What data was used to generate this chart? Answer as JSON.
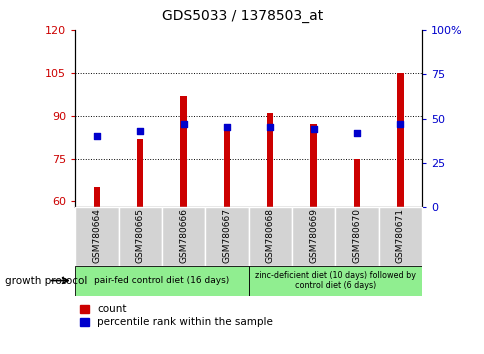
{
  "title": "GDS5033 / 1378503_at",
  "samples": [
    "GSM780664",
    "GSM780665",
    "GSM780666",
    "GSM780667",
    "GSM780668",
    "GSM780669",
    "GSM780670",
    "GSM780671"
  ],
  "counts": [
    65,
    82,
    97,
    87,
    91,
    87,
    75,
    105
  ],
  "percentile_ranks": [
    40,
    43,
    47,
    45,
    45,
    44,
    42,
    47
  ],
  "ylim_left": [
    58,
    120
  ],
  "ylim_right": [
    0,
    100
  ],
  "yticks_left": [
    60,
    75,
    90,
    105,
    120
  ],
  "yticks_right": [
    0,
    25,
    50,
    75,
    100
  ],
  "ytick_labels_left": [
    "60",
    "75",
    "90",
    "105",
    "120"
  ],
  "ytick_labels_right": [
    "0",
    "25",
    "50",
    "75",
    "100%"
  ],
  "bar_color": "#cc0000",
  "dot_color": "#0000cc",
  "bar_bottom": 58,
  "group1_label": "pair-fed control diet (16 days)",
  "group2_label": "zinc-deficient diet (10 days) followed by\ncontrol diet (6 days)",
  "growth_protocol_label": "growth protocol",
  "group1_color": "#90EE90",
  "group2_color": "#90EE90",
  "legend_count_label": "count",
  "legend_pct_label": "percentile rank within the sample",
  "tick_label_color_left": "#cc0000",
  "tick_label_color_right": "#0000cc",
  "xticklabel_bg": "#d3d3d3",
  "bar_width": 0.15
}
